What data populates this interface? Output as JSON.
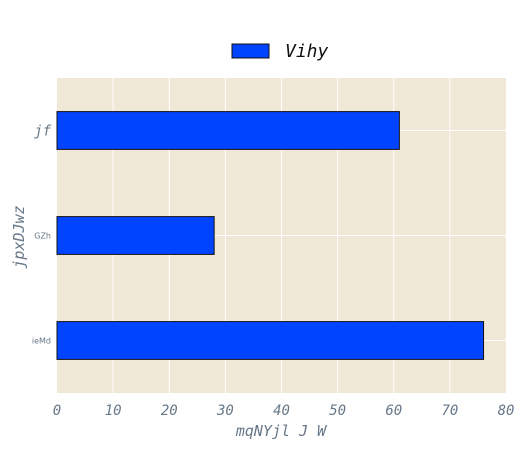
{
  "chart_data": {
    "type": "bar",
    "orientation": "horizontal",
    "categories": [
      "jf",
      "GZh",
      "ieMd"
    ],
    "category_label_styles": [
      "large",
      "small",
      "small"
    ],
    "series": [
      {
        "name": "Vihy",
        "values": [
          61,
          28,
          76
        ]
      }
    ],
    "xlabel": "mqNYjl J W",
    "ylabel": "jpxDJwz",
    "xlim": [
      0,
      80
    ],
    "xticks": [
      "0",
      "10",
      "20",
      "30",
      "40",
      "50",
      "60",
      "70",
      "80"
    ],
    "grid": true,
    "legend_position": "top-center",
    "colors": {
      "bar": "#0044ff",
      "bar_edge": "#111111",
      "plot_background": "#efe8d6",
      "grid": "#ffffff",
      "tick_text": "#667788",
      "legend_text": "#111111"
    }
  }
}
